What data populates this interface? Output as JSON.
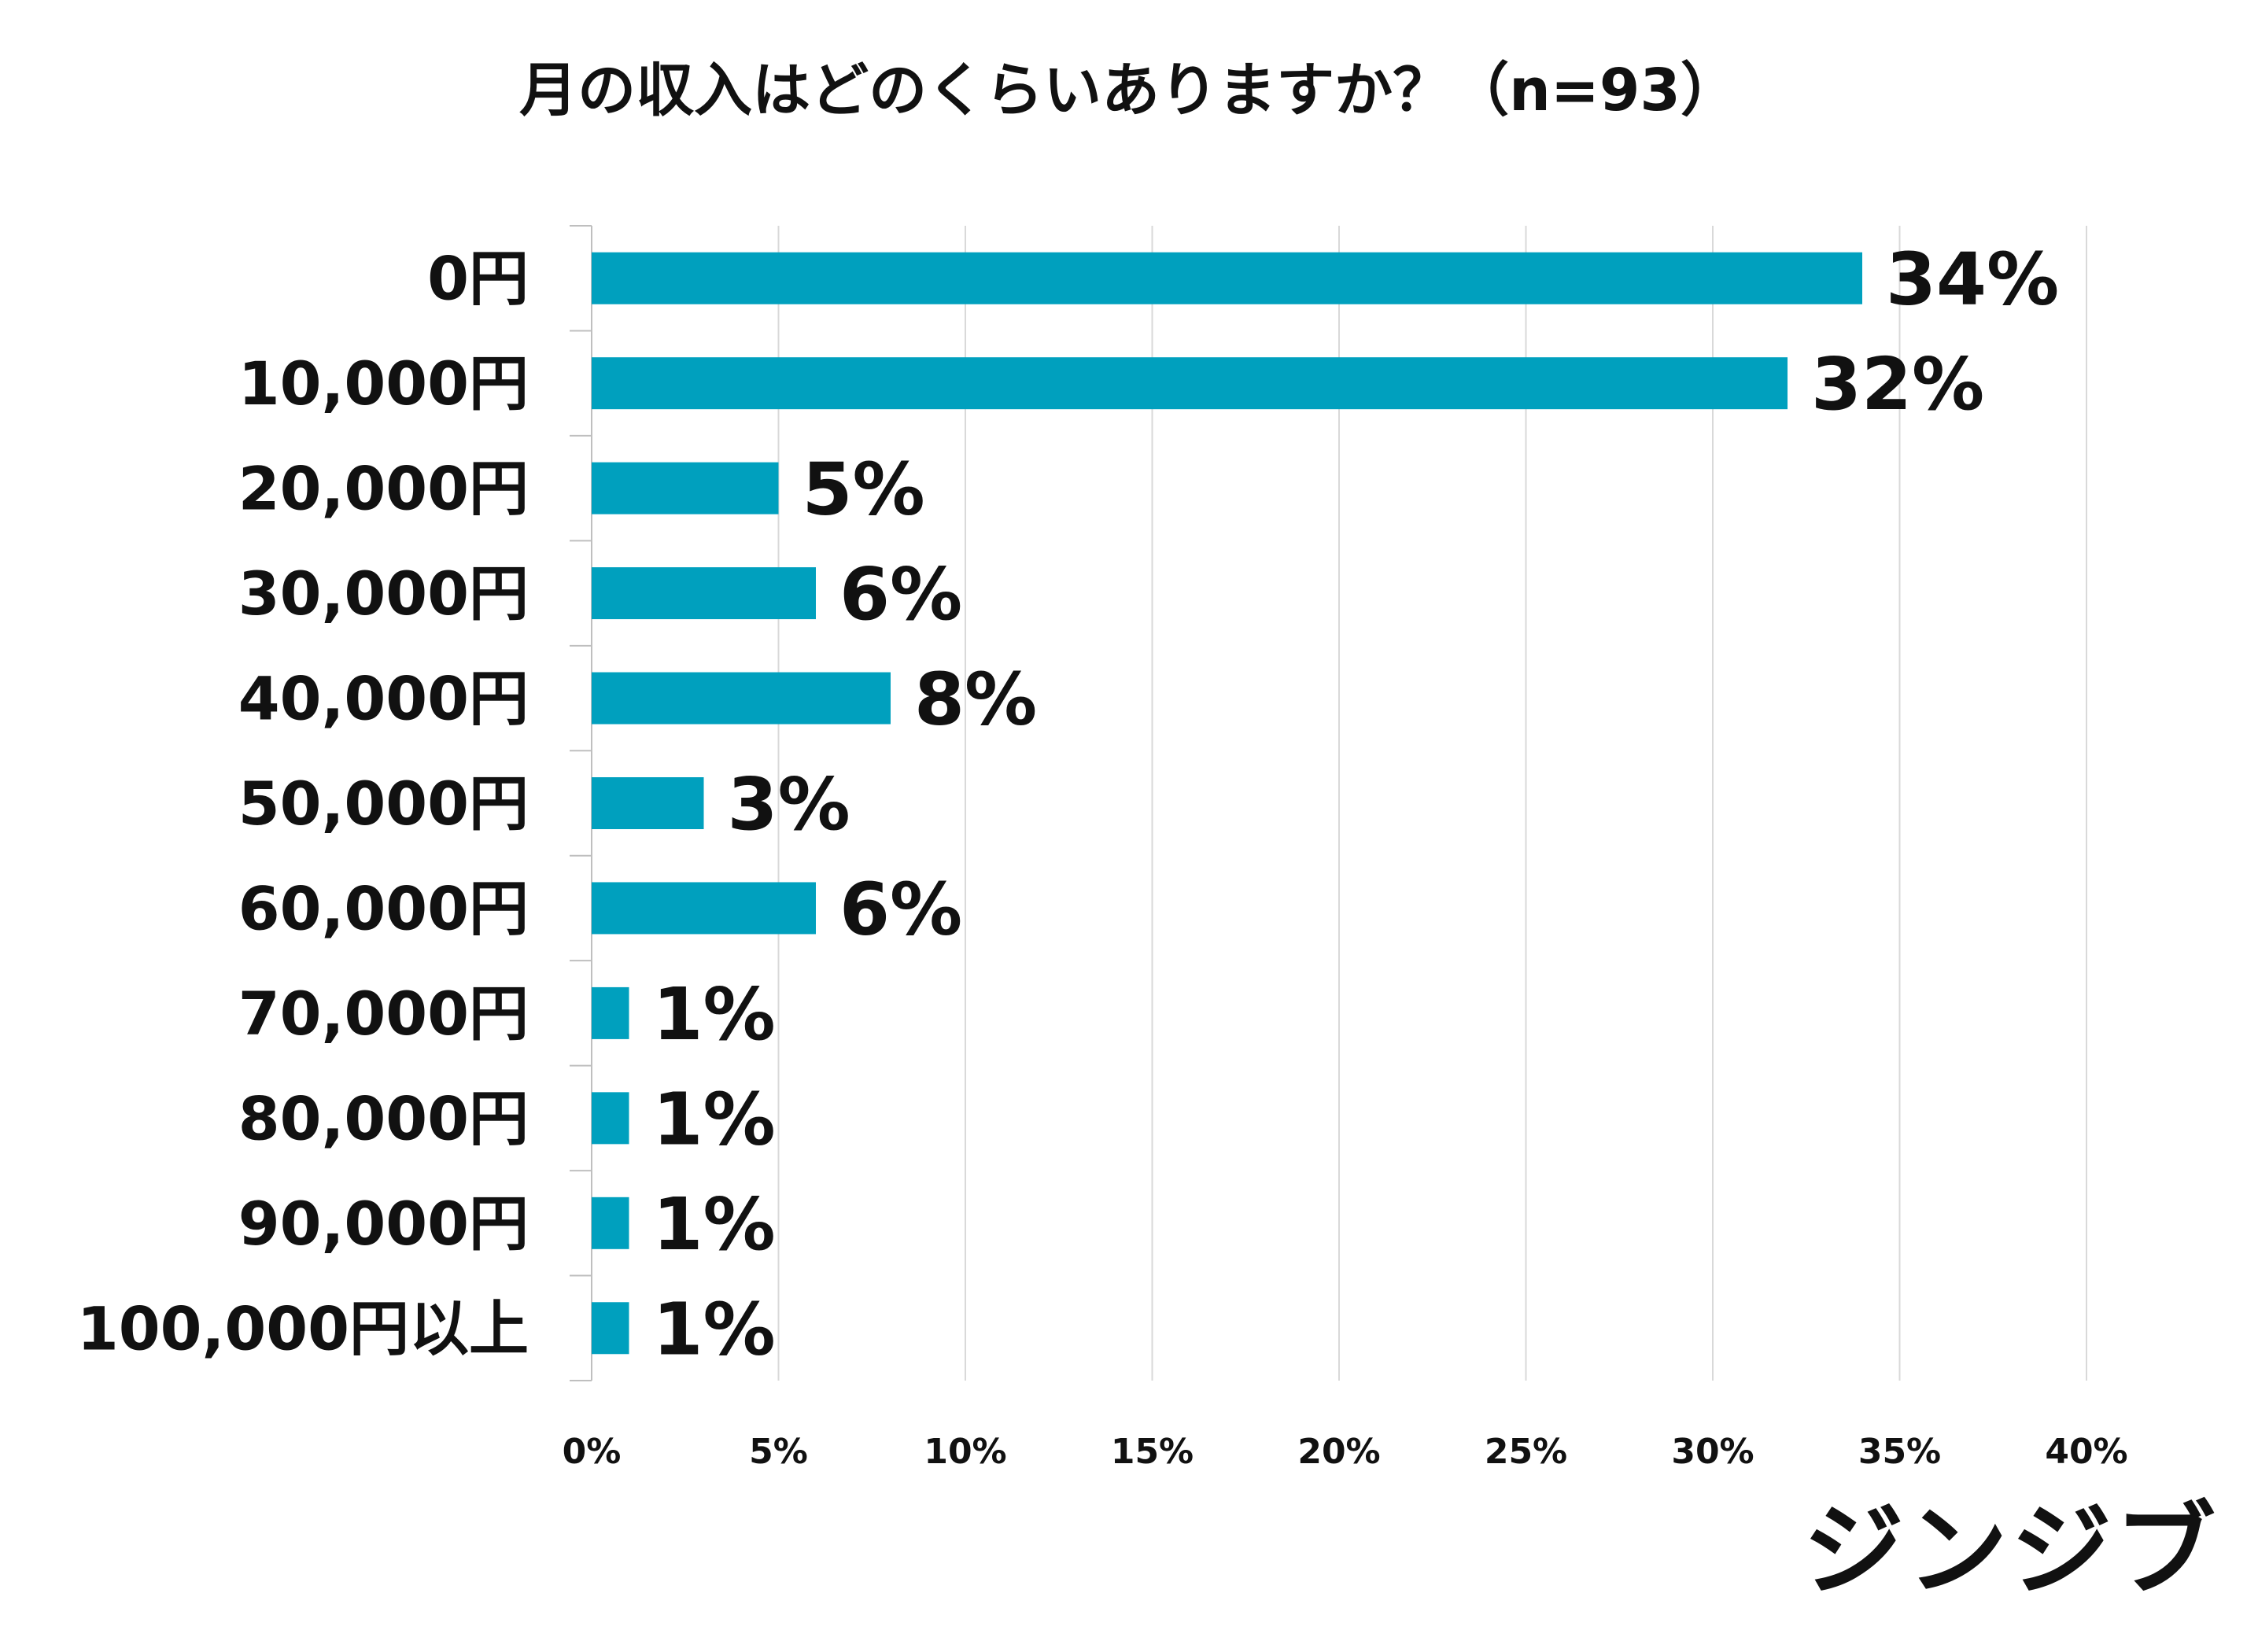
{
  "chart_data": {
    "type": "bar",
    "orientation": "horizontal",
    "title": "月の収入はどのくらいありますか？（n=93）",
    "categories": [
      "0円",
      "10,000円",
      "20,000円",
      "30,000円",
      "40,000円",
      "50,000円",
      "60,000円",
      "70,000円",
      "80,000円",
      "90,000円",
      "100,000円以上"
    ],
    "values": [
      34,
      32,
      5,
      6,
      8,
      3,
      6,
      1,
      1,
      1,
      1
    ],
    "value_labels": [
      "34%",
      "32%",
      "5%",
      "6%",
      "8%",
      "3%",
      "6%",
      "1%",
      "1%",
      "1%",
      "1%"
    ],
    "xlim": [
      0,
      40
    ],
    "x_ticks": [
      0,
      5,
      10,
      15,
      20,
      25,
      30,
      35,
      40
    ],
    "x_tick_labels": [
      "0%",
      "5%",
      "10%",
      "15%",
      "20%",
      "25%",
      "30%",
      "35%",
      "40%"
    ],
    "xlabel": "",
    "ylabel": "",
    "grid": true,
    "bar_color": "#00A0BE",
    "grid_color": "#D9D9D9"
  },
  "brand": {
    "name": "ジンジブ"
  }
}
